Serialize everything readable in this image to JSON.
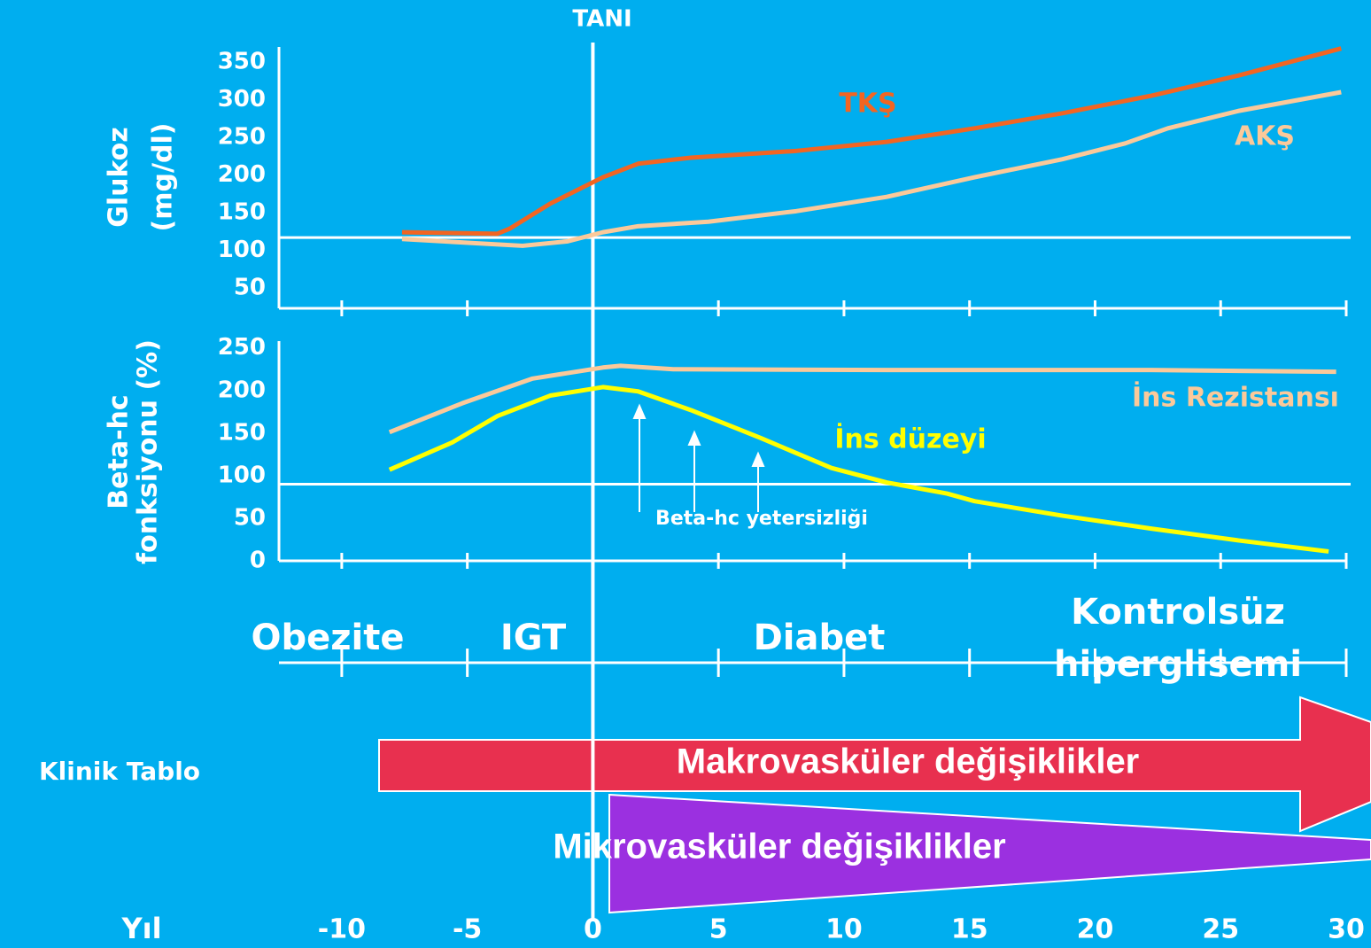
{
  "tani": "TANI",
  "x_axis": {
    "label": "Yıl",
    "xlim": [
      -12.5,
      30
    ],
    "xticks": [
      -10,
      -5,
      0,
      5,
      10,
      15,
      20,
      25,
      30
    ]
  },
  "chart_data": [
    {
      "type": "line",
      "y_label": [
        "Glukoz",
        "(mg/dl)"
      ],
      "ylim": [
        23,
        370
      ],
      "yticks": [
        50,
        100,
        150,
        200,
        250,
        300,
        350
      ],
      "reference_line": 117,
      "series": [
        {
          "name": "TKŞ",
          "color": "#f26522",
          "x": [
            -7.6,
            -3.8,
            -3.3,
            -1.7,
            0.4,
            1.8,
            3.9,
            8.1,
            11.7,
            15.2,
            18.7,
            22.2,
            25.7,
            29.8
          ],
          "values": [
            124,
            122,
            129,
            162,
            197,
            215,
            223,
            232,
            244,
            262,
            282,
            305,
            332,
            368
          ]
        },
        {
          "name": "AKŞ",
          "color": "#fbc99a",
          "x": [
            -7.6,
            -2.8,
            -1,
            0.4,
            1.8,
            4.6,
            8.1,
            11.7,
            15.2,
            18.7,
            21.2,
            22.9,
            25.7,
            29.8
          ],
          "values": [
            115,
            106,
            112,
            124,
            132,
            138,
            152,
            171,
            197,
            221,
            242,
            262,
            285,
            310
          ]
        }
      ]
    },
    {
      "type": "line",
      "y_label": [
        "Beta-hc",
        "fonksiyonu (%)"
      ],
      "ylim": [
        0,
        258
      ],
      "yticks": [
        0,
        50,
        100,
        150,
        200,
        250
      ],
      "reference_line": 90,
      "annotation": "Beta-hc yetersizliği",
      "series": [
        {
          "name": "İns Rezistansı",
          "color": "#fbc99a",
          "x": [
            -8.1,
            -5.2,
            -2.4,
            0.4,
            1.1,
            3.2,
            11.7,
            22.2,
            29.6
          ],
          "values": [
            151,
            185,
            214,
            227,
            229,
            225,
            224,
            224,
            222
          ]
        },
        {
          "name": "İns düzeyi",
          "color": "#ffff00",
          "x": [
            -8.1,
            -5.6,
            -3.8,
            -1.7,
            0.4,
            1.8,
            3.9,
            6.7,
            9.5,
            11.7,
            14.1,
            15.2,
            18.7,
            22.2,
            25.7,
            29.3
          ],
          "values": [
            107,
            139,
            170,
            194,
            204,
            199,
            177,
            144,
            109,
            92,
            79,
            70,
            53,
            38,
            24,
            11
          ]
        }
      ]
    }
  ],
  "stages": [
    "Obezite",
    "IGT",
    "Diabet",
    [
      "Kontrolsüz",
      "hiperglisemi"
    ]
  ],
  "clinical": {
    "label": "Klinik Tablo",
    "macro": "Makrovasküler değişiklikler",
    "micro": "Mikrovasküler değişiklikler"
  }
}
